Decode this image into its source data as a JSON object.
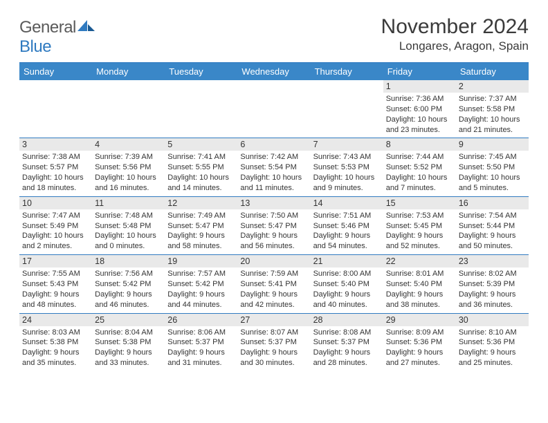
{
  "logo": {
    "word1": "General",
    "word2": "Blue"
  },
  "title": "November 2024",
  "location": "Longares, Aragon, Spain",
  "colors": {
    "header_bg": "#3a87c8",
    "rule": "#2f7ac0",
    "daynum_bg": "#e9e9e9",
    "text": "#333333",
    "logo_gray": "#5a5a5a",
    "logo_blue": "#2f7ac0"
  },
  "weekdays": [
    "Sunday",
    "Monday",
    "Tuesday",
    "Wednesday",
    "Thursday",
    "Friday",
    "Saturday"
  ],
  "weeks": [
    [
      null,
      null,
      null,
      null,
      null,
      {
        "n": "1",
        "sunrise": "7:36 AM",
        "sunset": "6:00 PM",
        "day": "10 hours and 23 minutes."
      },
      {
        "n": "2",
        "sunrise": "7:37 AM",
        "sunset": "5:58 PM",
        "day": "10 hours and 21 minutes."
      }
    ],
    [
      {
        "n": "3",
        "sunrise": "7:38 AM",
        "sunset": "5:57 PM",
        "day": "10 hours and 18 minutes."
      },
      {
        "n": "4",
        "sunrise": "7:39 AM",
        "sunset": "5:56 PM",
        "day": "10 hours and 16 minutes."
      },
      {
        "n": "5",
        "sunrise": "7:41 AM",
        "sunset": "5:55 PM",
        "day": "10 hours and 14 minutes."
      },
      {
        "n": "6",
        "sunrise": "7:42 AM",
        "sunset": "5:54 PM",
        "day": "10 hours and 11 minutes."
      },
      {
        "n": "7",
        "sunrise": "7:43 AM",
        "sunset": "5:53 PM",
        "day": "10 hours and 9 minutes."
      },
      {
        "n": "8",
        "sunrise": "7:44 AM",
        "sunset": "5:52 PM",
        "day": "10 hours and 7 minutes."
      },
      {
        "n": "9",
        "sunrise": "7:45 AM",
        "sunset": "5:50 PM",
        "day": "10 hours and 5 minutes."
      }
    ],
    [
      {
        "n": "10",
        "sunrise": "7:47 AM",
        "sunset": "5:49 PM",
        "day": "10 hours and 2 minutes."
      },
      {
        "n": "11",
        "sunrise": "7:48 AM",
        "sunset": "5:48 PM",
        "day": "10 hours and 0 minutes."
      },
      {
        "n": "12",
        "sunrise": "7:49 AM",
        "sunset": "5:47 PM",
        "day": "9 hours and 58 minutes."
      },
      {
        "n": "13",
        "sunrise": "7:50 AM",
        "sunset": "5:47 PM",
        "day": "9 hours and 56 minutes."
      },
      {
        "n": "14",
        "sunrise": "7:51 AM",
        "sunset": "5:46 PM",
        "day": "9 hours and 54 minutes."
      },
      {
        "n": "15",
        "sunrise": "7:53 AM",
        "sunset": "5:45 PM",
        "day": "9 hours and 52 minutes."
      },
      {
        "n": "16",
        "sunrise": "7:54 AM",
        "sunset": "5:44 PM",
        "day": "9 hours and 50 minutes."
      }
    ],
    [
      {
        "n": "17",
        "sunrise": "7:55 AM",
        "sunset": "5:43 PM",
        "day": "9 hours and 48 minutes."
      },
      {
        "n": "18",
        "sunrise": "7:56 AM",
        "sunset": "5:42 PM",
        "day": "9 hours and 46 minutes."
      },
      {
        "n": "19",
        "sunrise": "7:57 AM",
        "sunset": "5:42 PM",
        "day": "9 hours and 44 minutes."
      },
      {
        "n": "20",
        "sunrise": "7:59 AM",
        "sunset": "5:41 PM",
        "day": "9 hours and 42 minutes."
      },
      {
        "n": "21",
        "sunrise": "8:00 AM",
        "sunset": "5:40 PM",
        "day": "9 hours and 40 minutes."
      },
      {
        "n": "22",
        "sunrise": "8:01 AM",
        "sunset": "5:40 PM",
        "day": "9 hours and 38 minutes."
      },
      {
        "n": "23",
        "sunrise": "8:02 AM",
        "sunset": "5:39 PM",
        "day": "9 hours and 36 minutes."
      }
    ],
    [
      {
        "n": "24",
        "sunrise": "8:03 AM",
        "sunset": "5:38 PM",
        "day": "9 hours and 35 minutes."
      },
      {
        "n": "25",
        "sunrise": "8:04 AM",
        "sunset": "5:38 PM",
        "day": "9 hours and 33 minutes."
      },
      {
        "n": "26",
        "sunrise": "8:06 AM",
        "sunset": "5:37 PM",
        "day": "9 hours and 31 minutes."
      },
      {
        "n": "27",
        "sunrise": "8:07 AM",
        "sunset": "5:37 PM",
        "day": "9 hours and 30 minutes."
      },
      {
        "n": "28",
        "sunrise": "8:08 AM",
        "sunset": "5:37 PM",
        "day": "9 hours and 28 minutes."
      },
      {
        "n": "29",
        "sunrise": "8:09 AM",
        "sunset": "5:36 PM",
        "day": "9 hours and 27 minutes."
      },
      {
        "n": "30",
        "sunrise": "8:10 AM",
        "sunset": "5:36 PM",
        "day": "9 hours and 25 minutes."
      }
    ]
  ]
}
